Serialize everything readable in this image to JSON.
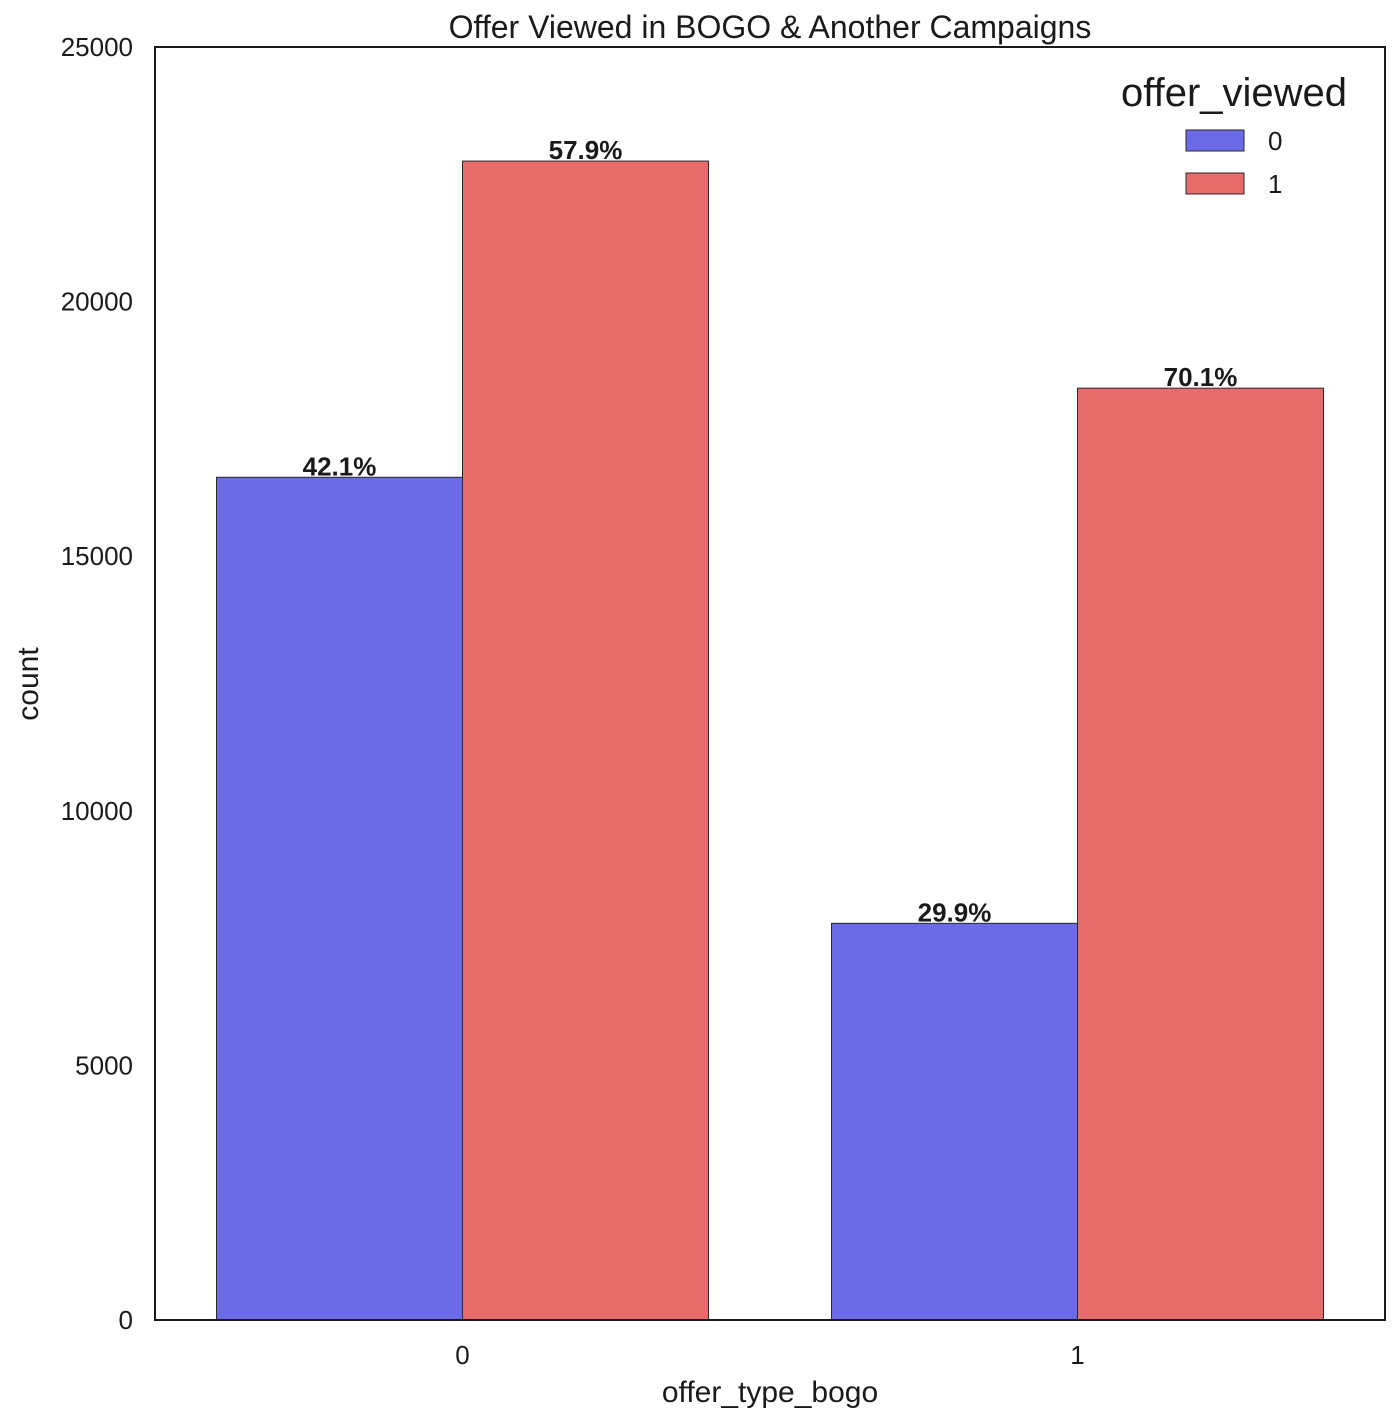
{
  "chart_data": {
    "type": "bar",
    "title": "Offer Viewed in BOGO & Another Campaigns",
    "xlabel": "offer_type_bogo",
    "ylabel": "count",
    "categories": [
      "0",
      "1"
    ],
    "ylim": [
      0,
      25000
    ],
    "yticks": [
      0,
      5000,
      10000,
      15000,
      20000,
      25000
    ],
    "ytick_labels": [
      "0",
      "5000",
      "10000",
      "15000",
      "20000",
      "25000"
    ],
    "grid": false,
    "legend": {
      "title": "offer_viewed",
      "placement": "top-right",
      "entries": [
        "0",
        "1"
      ]
    },
    "series": [
      {
        "name": "0",
        "color": "#6b6be8",
        "values": [
          16550,
          7790
        ],
        "labels": [
          "42.1%",
          "29.9%"
        ]
      },
      {
        "name": "1",
        "color": "#e86b6b",
        "values": [
          22760,
          18300
        ],
        "labels": [
          "57.9%",
          "70.1%"
        ]
      }
    ]
  }
}
